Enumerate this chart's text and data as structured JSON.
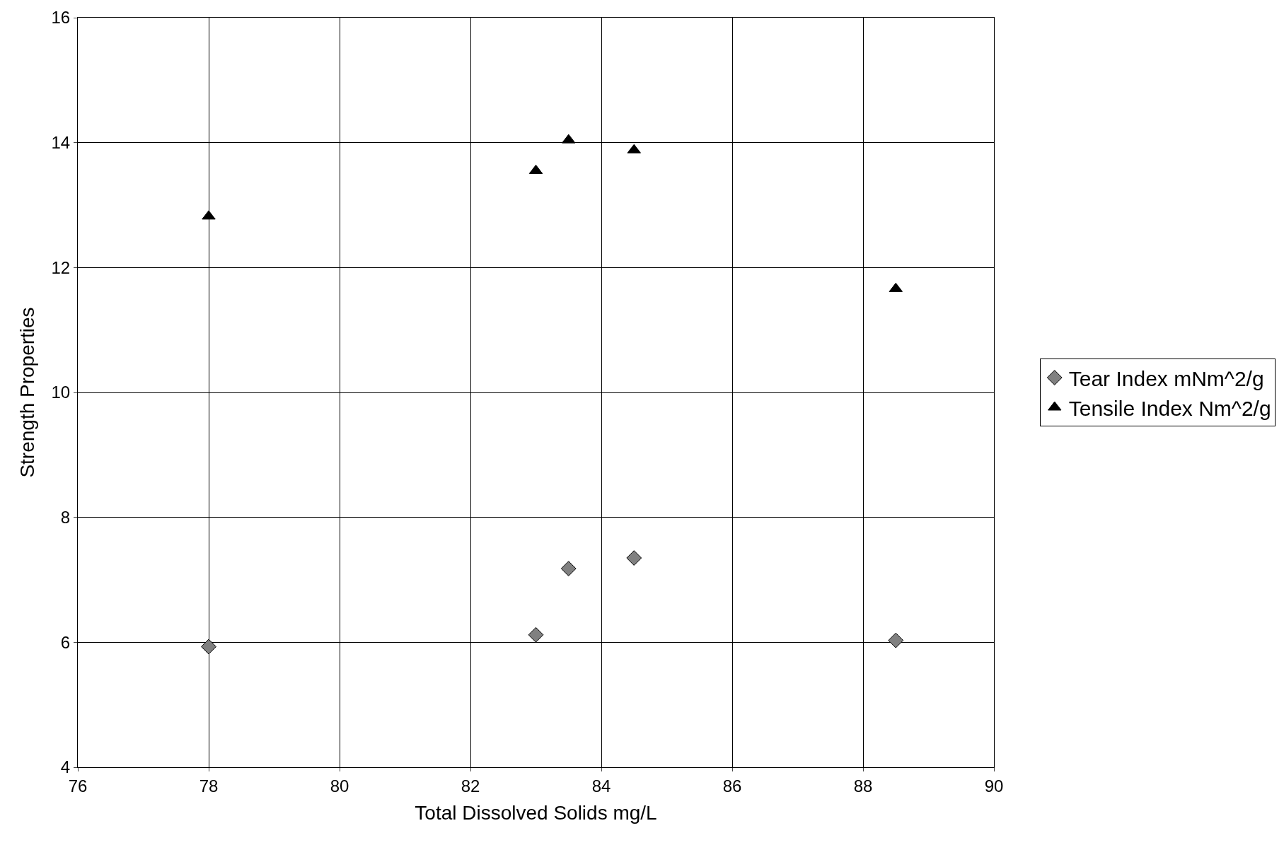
{
  "chart_data": {
    "type": "scatter",
    "xlabel": "Total Dissolved Solids mg/L",
    "ylabel": "Strength Properties",
    "series": [
      {
        "name": "Tear Index mNm^2/g",
        "color": "#808080",
        "marker": "diamond",
        "x": [
          78.0,
          83.0,
          83.5,
          84.5,
          88.5
        ],
        "values": [
          5.93,
          6.12,
          7.18,
          7.35,
          6.03
        ]
      },
      {
        "name": "Tensile Index Nm^2/g",
        "color": "#000000",
        "marker": "triangle",
        "x": [
          78.0,
          83.0,
          83.5,
          84.5,
          88.5
        ],
        "values": [
          12.82,
          13.55,
          14.04,
          13.88,
          11.66
        ]
      }
    ],
    "xlim": [
      76,
      90
    ],
    "xticks": [
      76,
      78,
      80,
      82,
      84,
      86,
      88,
      90
    ],
    "ylim": [
      4,
      16
    ],
    "yticks": [
      4,
      6,
      8,
      10,
      12,
      14,
      16
    ],
    "grid": true,
    "legend": "right"
  }
}
